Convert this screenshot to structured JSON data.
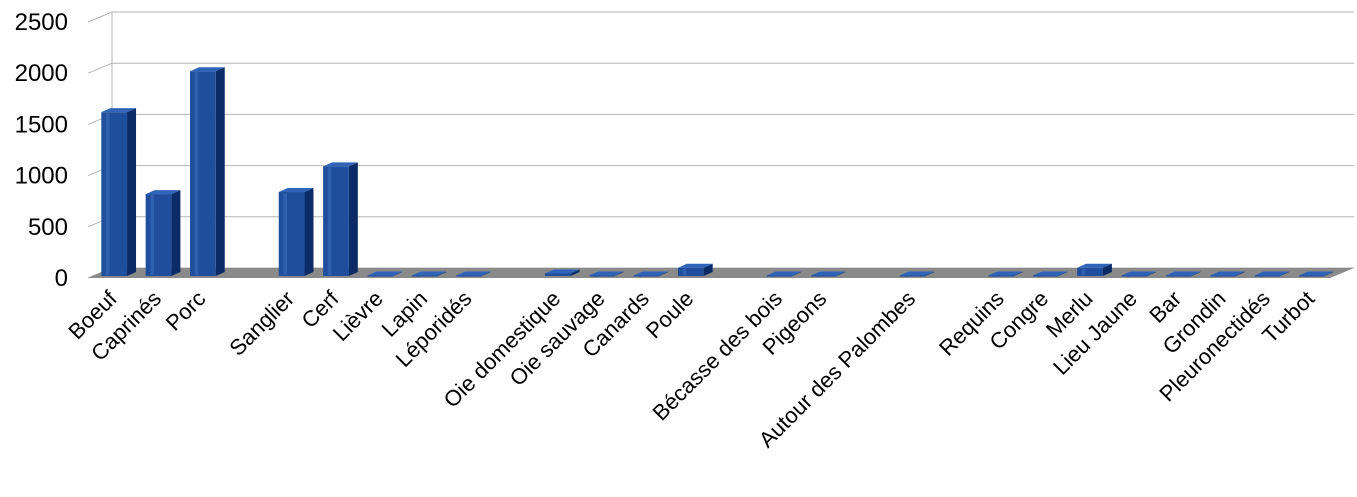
{
  "chart_data": {
    "type": "bar",
    "style": "3d-column",
    "bar_color": "#1f4e9c",
    "grid": true,
    "legend": "none",
    "ylim": [
      0,
      2500
    ],
    "yticks": [
      0,
      500,
      1000,
      1500,
      2000,
      2500
    ],
    "categories": [
      "Boeuf",
      "Caprinés",
      "Porc",
      "",
      "Sanglier",
      "Cerf",
      "Lièvre",
      "Lapin",
      "Léporidés",
      "",
      "Oie domestique",
      "Oie sauvage",
      "Canards",
      "Poule",
      "",
      "Bécasse des bois",
      "Pigeons",
      "",
      "Autour des Palombes",
      "",
      "Requins",
      "Congre",
      "Merlu",
      "Lieu Jaune",
      "Bar",
      "Grondin",
      "Pleuronectidés",
      "Turbot"
    ],
    "values": [
      1600,
      800,
      2000,
      null,
      820,
      1070,
      5,
      5,
      5,
      null,
      25,
      5,
      5,
      80,
      null,
      5,
      5,
      null,
      5,
      null,
      5,
      5,
      80,
      5,
      5,
      5,
      5,
      5
    ]
  }
}
